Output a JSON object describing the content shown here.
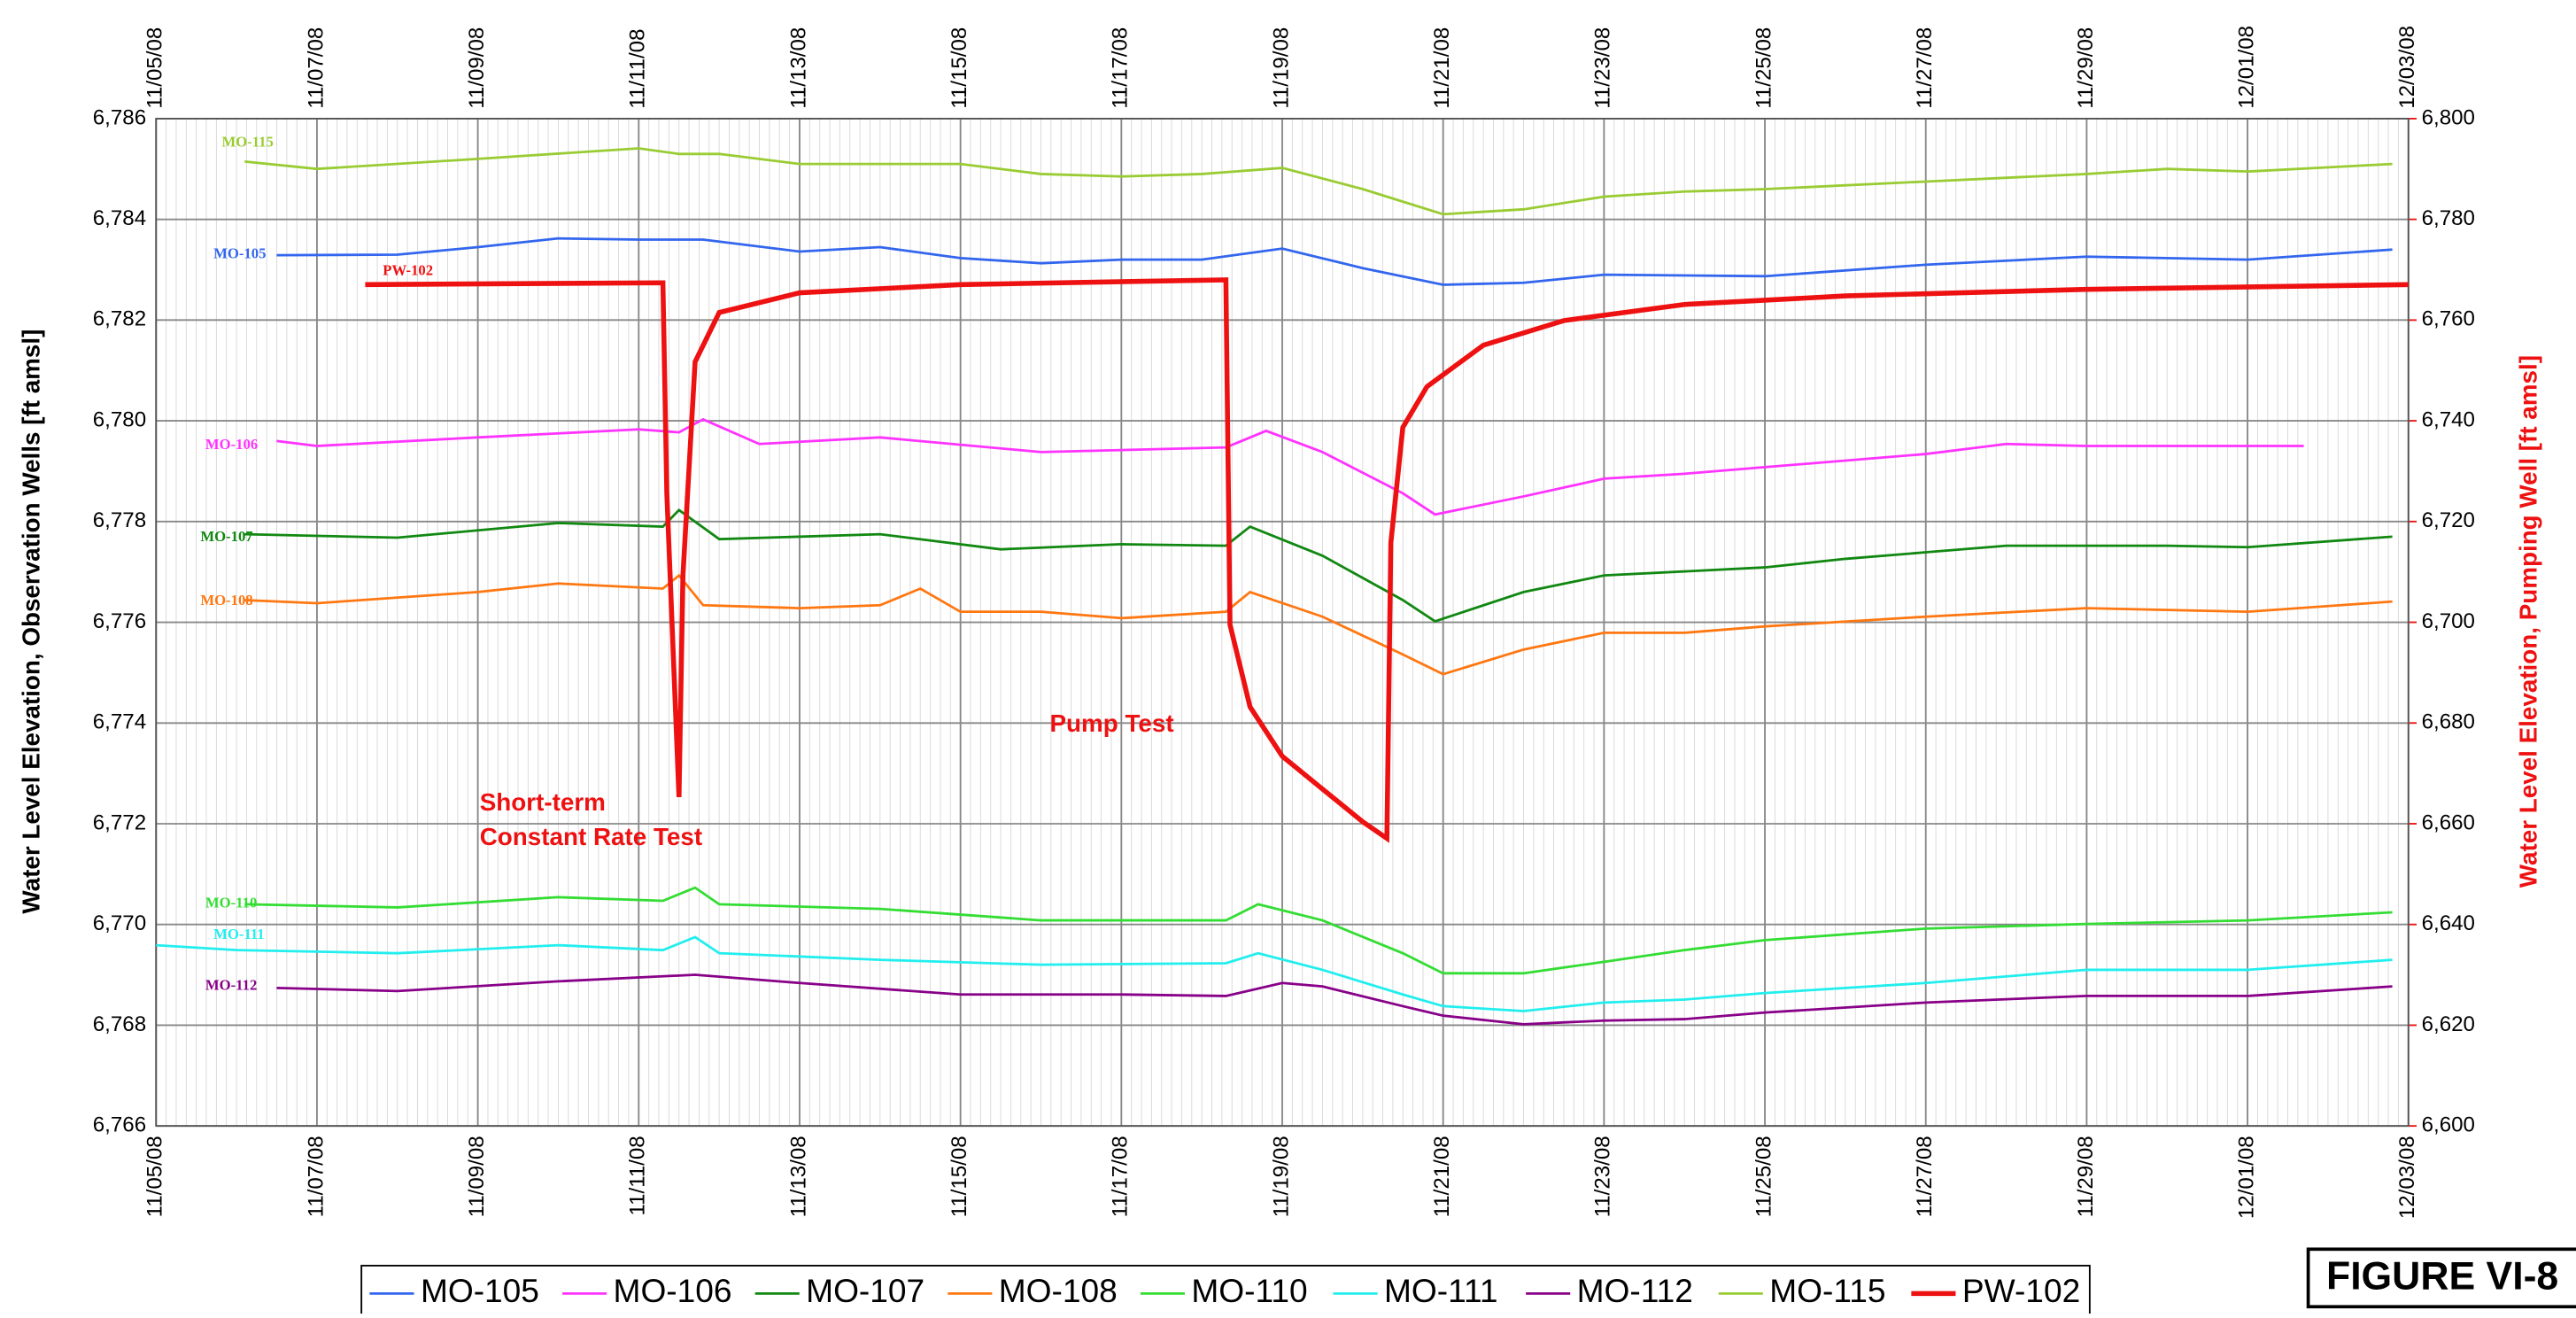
{
  "chart_data": {
    "type": "line",
    "ylabel": "Water Level Elevation, Observation Wells [ft amsl]",
    "y2label": "Water Level Elevation, Pumping Well [ft amsl]",
    "figure_label": "FIGURE VI-8",
    "annotations": [
      "Short-term",
      "Constant Rate Test",
      "Pump Test"
    ],
    "annotation_color": "#ee1111",
    "xlim": [
      0,
      28
    ],
    "xticks": [
      {
        "value": 0,
        "label": "11/05/08"
      },
      {
        "value": 2,
        "label": "11/07/08"
      },
      {
        "value": 4,
        "label": "11/09/08"
      },
      {
        "value": 6,
        "label": "11/11/08"
      },
      {
        "value": 8,
        "label": "11/13/08"
      },
      {
        "value": 10,
        "label": "11/15/08"
      },
      {
        "value": 12,
        "label": "11/17/08"
      },
      {
        "value": 14,
        "label": "11/19/08"
      },
      {
        "value": 16,
        "label": "11/21/08"
      },
      {
        "value": 18,
        "label": "11/23/08"
      },
      {
        "value": 20,
        "label": "11/25/08"
      },
      {
        "value": 22,
        "label": "11/27/08"
      },
      {
        "value": 24,
        "label": "11/29/08"
      },
      {
        "value": 26,
        "label": "12/01/08"
      },
      {
        "value": 28,
        "label": "12/03/08"
      }
    ],
    "ylim": [
      6766,
      6786
    ],
    "yticks": [
      {
        "value": 6766,
        "label": "6,766"
      },
      {
        "value": 6768,
        "label": "6,768"
      },
      {
        "value": 6770,
        "label": "6,770"
      },
      {
        "value": 6772,
        "label": "6,772"
      },
      {
        "value": 6774,
        "label": "6,774"
      },
      {
        "value": 6776,
        "label": "6,776"
      },
      {
        "value": 6778,
        "label": "6,778"
      },
      {
        "value": 6780,
        "label": "6,780"
      },
      {
        "value": 6782,
        "label": "6,782"
      },
      {
        "value": 6784,
        "label": "6,784"
      },
      {
        "value": 6786,
        "label": "6,786"
      }
    ],
    "y2lim": [
      6600,
      6800
    ],
    "y2ticks": [
      {
        "value": 6600,
        "label": "6,600"
      },
      {
        "value": 6620,
        "label": "6,620"
      },
      {
        "value": 6640,
        "label": "6,640"
      },
      {
        "value": 6660,
        "label": "6,660"
      },
      {
        "value": 6680,
        "label": "6,680"
      },
      {
        "value": 6700,
        "label": "6,700"
      },
      {
        "value": 6720,
        "label": "6,720"
      },
      {
        "value": 6740,
        "label": "6,740"
      },
      {
        "value": 6760,
        "label": "6,760"
      },
      {
        "value": 6780,
        "label": "6,780"
      },
      {
        "value": 6800,
        "label": "6,800"
      }
    ],
    "y2color": "#ee1111",
    "grid": true,
    "legend": "bottom",
    "series": [
      {
        "name": "MO-105",
        "color": "#3366ee",
        "x": [
          1.5,
          3,
          4,
          5,
          6,
          6.8,
          8,
          9,
          10,
          11,
          12,
          13,
          14,
          15,
          16,
          17,
          18,
          20,
          22,
          24,
          26,
          27.8
        ],
        "values": [
          6783.29,
          6783.3,
          6783.45,
          6783.62,
          6783.6,
          6783.6,
          6783.36,
          6783.45,
          6783.23,
          6783.13,
          6783.2,
          6783.2,
          6783.42,
          6783.03,
          6782.7,
          6782.74,
          6782.9,
          6782.87,
          6783.1,
          6783.26,
          6783.2,
          6783.4
        ]
      },
      {
        "name": "MO-106",
        "color": "#ff33ff",
        "x": [
          1.5,
          2,
          4,
          6,
          6.5,
          6.8,
          7.5,
          9,
          11,
          13.3,
          13.8,
          14.5,
          15.5,
          15.9,
          17,
          18,
          19,
          20,
          22,
          23,
          24,
          26.7
        ],
        "values": [
          6779.6,
          6779.5,
          6779.67,
          6779.83,
          6779.77,
          6780.03,
          6779.54,
          6779.67,
          6779.38,
          6779.47,
          6779.8,
          6779.38,
          6778.56,
          6778.14,
          6778.5,
          6778.85,
          6778.95,
          6779.08,
          6779.34,
          6779.54,
          6779.5,
          6779.5
        ]
      },
      {
        "name": "MO-107",
        "color": "#118811",
        "x": [
          1.1,
          3,
          5,
          6.3,
          6.5,
          7,
          9,
          10.5,
          12,
          13.3,
          13.6,
          14.5,
          15.5,
          15.9,
          17,
          18,
          20,
          21,
          22,
          23,
          25,
          26,
          27.8
        ],
        "values": [
          6777.75,
          6777.68,
          6777.97,
          6777.9,
          6778.23,
          6777.65,
          6777.75,
          6777.45,
          6777.55,
          6777.52,
          6777.9,
          6777.32,
          6776.44,
          6776.02,
          6776.6,
          6776.93,
          6777.09,
          6777.26,
          6777.39,
          6777.52,
          6777.52,
          6777.49,
          6777.7
        ]
      },
      {
        "name": "MO-108",
        "color": "#ff7711",
        "x": [
          1.1,
          2,
          4,
          5,
          6.3,
          6.5,
          6.8,
          8,
          9,
          9.5,
          10,
          11,
          12,
          13.3,
          13.6,
          14.5,
          15.5,
          16,
          17,
          18,
          19,
          20,
          22,
          24,
          26,
          27.8
        ],
        "values": [
          6776.44,
          6776.38,
          6776.6,
          6776.77,
          6776.67,
          6776.93,
          6776.34,
          6776.28,
          6776.34,
          6776.67,
          6776.21,
          6776.21,
          6776.08,
          6776.21,
          6776.6,
          6776.11,
          6775.36,
          6774.97,
          6775.46,
          6775.79,
          6775.79,
          6775.92,
          6776.11,
          6776.28,
          6776.21,
          6776.41
        ]
      },
      {
        "name": "MO-110",
        "color": "#33dd33",
        "x": [
          1.1,
          3,
          5,
          6.3,
          6.7,
          7,
          9,
          11,
          13.3,
          13.7,
          14.5,
          15.5,
          16,
          17,
          18,
          19,
          20,
          22,
          24,
          26,
          27.8
        ],
        "values": [
          6770.4,
          6770.34,
          6770.54,
          6770.47,
          6770.73,
          6770.4,
          6770.31,
          6770.08,
          6770.08,
          6770.4,
          6770.08,
          6769.43,
          6769.03,
          6769.03,
          6769.26,
          6769.49,
          6769.69,
          6769.92,
          6770.01,
          6770.08,
          6770.24
        ]
      },
      {
        "name": "MO-111",
        "color": "#22eeee",
        "x": [
          0,
          1,
          3,
          5,
          6.3,
          6.7,
          7,
          9,
          11,
          13.3,
          13.7,
          14.5,
          15.5,
          16,
          17,
          18,
          19,
          20,
          22,
          24,
          26,
          27.8
        ],
        "values": [
          6769.59,
          6769.49,
          6769.43,
          6769.59,
          6769.49,
          6769.75,
          6769.43,
          6769.3,
          6769.2,
          6769.23,
          6769.43,
          6769.1,
          6768.61,
          6768.38,
          6768.28,
          6768.45,
          6768.51,
          6768.64,
          6768.84,
          6769.1,
          6769.1,
          6769.3
        ]
      },
      {
        "name": "MO-112",
        "color": "#880088",
        "x": [
          1.5,
          3,
          5,
          6.7,
          8,
          10,
          12,
          13.3,
          14,
          14.5,
          15.5,
          16,
          17,
          18,
          19,
          20,
          22,
          24,
          26,
          27.8
        ],
        "values": [
          6768.74,
          6768.68,
          6768.87,
          6769.0,
          6768.84,
          6768.61,
          6768.61,
          6768.58,
          6768.84,
          6768.77,
          6768.38,
          6768.19,
          6768.02,
          6768.09,
          6768.12,
          6768.25,
          6768.45,
          6768.58,
          6768.58,
          6768.77
        ]
      },
      {
        "name": "MO-115",
        "color": "#99cc33",
        "x": [
          1.1,
          2,
          4,
          6,
          6.5,
          7,
          8,
          10,
          11,
          12,
          13,
          14,
          15,
          16,
          17,
          18,
          19,
          20,
          22,
          24,
          25,
          26,
          27.8
        ],
        "values": [
          6785.15,
          6785.0,
          6785.2,
          6785.41,
          6785.3,
          6785.3,
          6785.1,
          6785.1,
          6784.9,
          6784.85,
          6784.9,
          6785.02,
          6784.6,
          6784.1,
          6784.2,
          6784.45,
          6784.55,
          6784.6,
          6784.75,
          6784.9,
          6785.0,
          6784.95,
          6785.1
        ]
      },
      {
        "name": "PW-102",
        "color": "#ee1111",
        "axis": "y2",
        "x": [
          2.6,
          6.3,
          6.35,
          6.5,
          6.55,
          6.7,
          7,
          8,
          10,
          13.3,
          13.35,
          13.6,
          14,
          14.5,
          15,
          15.3,
          15.35,
          15.5,
          15.8,
          16.5,
          17.5,
          19,
          21,
          24,
          28
        ],
        "values": [
          6767.05,
          6767.4,
          6725.6,
          6665.3,
          6709.3,
          6751.7,
          6761.5,
          6765.4,
          6767.05,
          6768.0,
          6699.5,
          6683.2,
          6673.4,
          6666.9,
          6660.4,
          6657.1,
          6715.8,
          6738.7,
          6746.8,
          6755,
          6759.9,
          6763.1,
          6764.8,
          6766.1,
          6767.05
        ]
      }
    ]
  }
}
